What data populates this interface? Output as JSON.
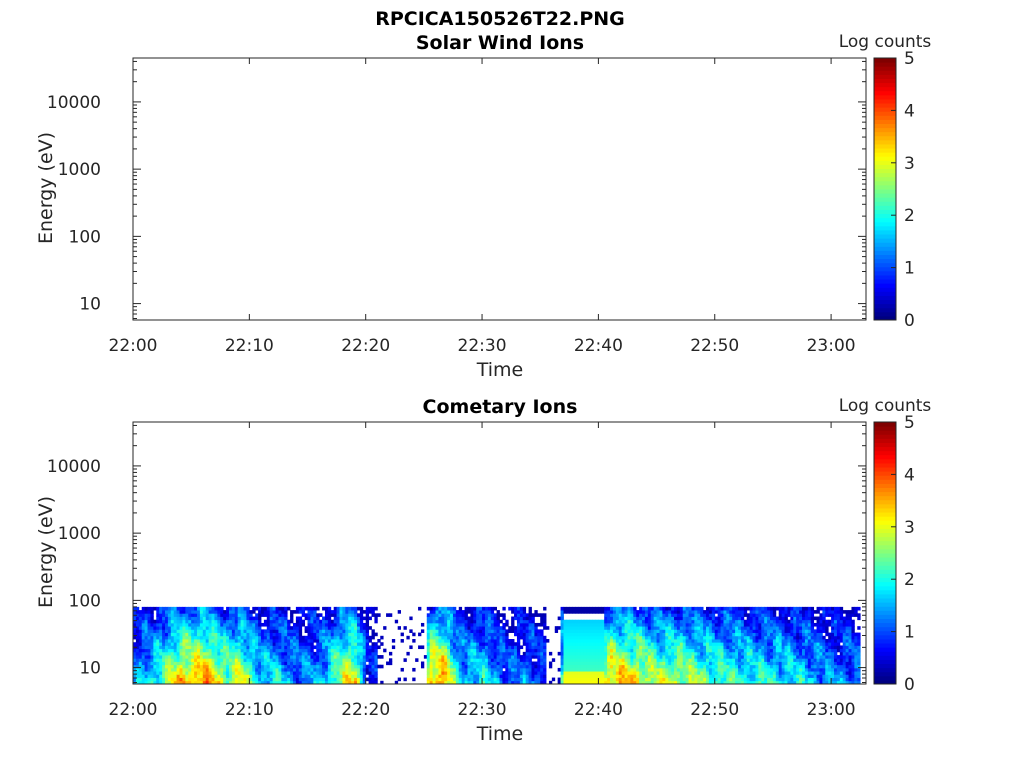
{
  "figure_title": "RPCICA150526T22.PNG",
  "chart_data": [
    {
      "type": "heatmap",
      "title": "Solar Wind Ions",
      "xlabel": "Time",
      "ylabel": "Energy (eV)",
      "x_ticks": [
        "22:00",
        "22:10",
        "22:20",
        "22:30",
        "22:40",
        "22:50",
        "23:00"
      ],
      "y_ticks": [
        "10",
        "100",
        "1000",
        "10000"
      ],
      "y_scale": "log",
      "ylim": [
        5.7,
        45000
      ],
      "xlim": [
        "22:00",
        "23:03"
      ],
      "colorbar": {
        "label": "Log counts",
        "ticks": [
          "0",
          "1",
          "2",
          "3",
          "4",
          "5"
        ],
        "range": [
          0,
          5
        ],
        "colormap": "jet"
      },
      "data": "empty"
    },
    {
      "type": "heatmap",
      "title": "Cometary Ions",
      "xlabel": "Time",
      "ylabel": "Energy (eV)",
      "x_ticks": [
        "22:00",
        "22:10",
        "22:20",
        "22:30",
        "22:40",
        "22:50",
        "23:00"
      ],
      "y_ticks": [
        "10",
        "100",
        "1000",
        "10000"
      ],
      "y_scale": "log",
      "ylim": [
        5.7,
        45000
      ],
      "xlim": [
        "22:00",
        "23:03"
      ],
      "colorbar": {
        "label": "Log counts",
        "ticks": [
          "0",
          "1",
          "2",
          "3",
          "4",
          "5"
        ],
        "range": [
          0,
          5
        ],
        "colormap": "jet"
      },
      "energy_max_ev": 80,
      "data_minutes": [
        0,
        62.5
      ],
      "intensity_profile": [
        {
          "t": 0,
          "v": 1.2
        },
        {
          "t": 2,
          "v": 2.0
        },
        {
          "t": 4,
          "v": 3.3
        },
        {
          "t": 6,
          "v": 3.5
        },
        {
          "t": 8,
          "v": 2.6
        },
        {
          "t": 9,
          "v": 2.9
        },
        {
          "t": 11,
          "v": 1.6
        },
        {
          "t": 12,
          "v": 1.8
        },
        {
          "t": 14,
          "v": 1.2
        },
        {
          "t": 16,
          "v": 1.4
        },
        {
          "t": 17,
          "v": 2.2
        },
        {
          "t": 18,
          "v": 2.8
        },
        {
          "t": 19,
          "v": 3.1
        },
        {
          "t": 20,
          "v": 0.8
        },
        {
          "t": 22,
          "v": 0.3
        },
        {
          "t": 24,
          "v": 0.3
        },
        {
          "t": 25.5,
          "v": 3.4
        },
        {
          "t": 26.5,
          "v": 3.6
        },
        {
          "t": 28,
          "v": 1.6
        },
        {
          "t": 30,
          "v": 1.8
        },
        {
          "t": 32,
          "v": 1.0
        },
        {
          "t": 34,
          "v": 1.2
        },
        {
          "t": 36,
          "v": 0.6
        },
        {
          "t": 37,
          "v": 2.6
        },
        {
          "t": 40,
          "v": 2.6
        },
        {
          "t": 41,
          "v": 3.4
        },
        {
          "t": 43,
          "v": 3.1
        },
        {
          "t": 45,
          "v": 2.6
        },
        {
          "t": 47,
          "v": 2.7
        },
        {
          "t": 50,
          "v": 2.2
        },
        {
          "t": 53,
          "v": 2.0
        },
        {
          "t": 56,
          "v": 1.8
        },
        {
          "t": 58,
          "v": 1.6
        },
        {
          "t": 60,
          "v": 1.2
        },
        {
          "t": 62.5,
          "v": 1.2
        }
      ],
      "gaps_minutes": [
        [
          21,
          25
        ],
        [
          35.5,
          36.5
        ]
      ],
      "uniform_band_minutes": [
        37,
        40.3
      ]
    }
  ]
}
